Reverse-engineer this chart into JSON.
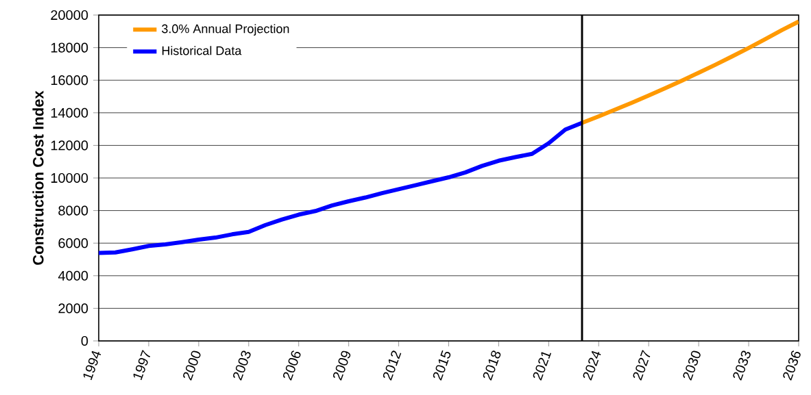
{
  "chart_data": {
    "type": "line",
    "ylabel": "Construction Cost Index",
    "series": [
      {
        "name": "3.0% Annual Projection",
        "color": "#ff9900",
        "x": [
          2023,
          2024,
          2025,
          2026,
          2027,
          2028,
          2029,
          2030,
          2031,
          2032,
          2033,
          2034,
          2035,
          2036
        ],
        "values": [
          13380,
          13780,
          14200,
          14620,
          15060,
          15510,
          15980,
          16460,
          16950,
          17460,
          17980,
          18520,
          19080,
          19600
        ]
      },
      {
        "name": "Historical Data",
        "color": "#0000ff",
        "x": [
          1994,
          1995,
          1996,
          1997,
          1998,
          1999,
          2000,
          2001,
          2002,
          2003,
          2004,
          2005,
          2006,
          2007,
          2008,
          2009,
          2010,
          2011,
          2012,
          2013,
          2014,
          2015,
          2016,
          2017,
          2018,
          2019,
          2020,
          2021,
          2022,
          2023
        ],
        "values": [
          5400,
          5430,
          5620,
          5830,
          5920,
          6060,
          6220,
          6340,
          6540,
          6690,
          7110,
          7450,
          7750,
          7970,
          8310,
          8570,
          8800,
          9070,
          9310,
          9550,
          9800,
          10040,
          10340,
          10740,
          11060,
          11280,
          11480,
          12130,
          12970,
          13380
        ]
      }
    ],
    "xlim": [
      1994,
      2036
    ],
    "xticks": [
      1994,
      1997,
      2000,
      2003,
      2006,
      2009,
      2012,
      2015,
      2018,
      2021,
      2024,
      2027,
      2030,
      2033,
      2036
    ],
    "ylim": [
      0,
      20000
    ],
    "yticks": [
      0,
      2000,
      4000,
      6000,
      8000,
      10000,
      12000,
      14000,
      16000,
      18000,
      20000
    ],
    "ref_lines": [
      {
        "axis": "x",
        "value": 2023,
        "color": "#000000"
      }
    ],
    "grid": "y",
    "legend": "top left",
    "marker": "none",
    "line_style": "solid"
  }
}
